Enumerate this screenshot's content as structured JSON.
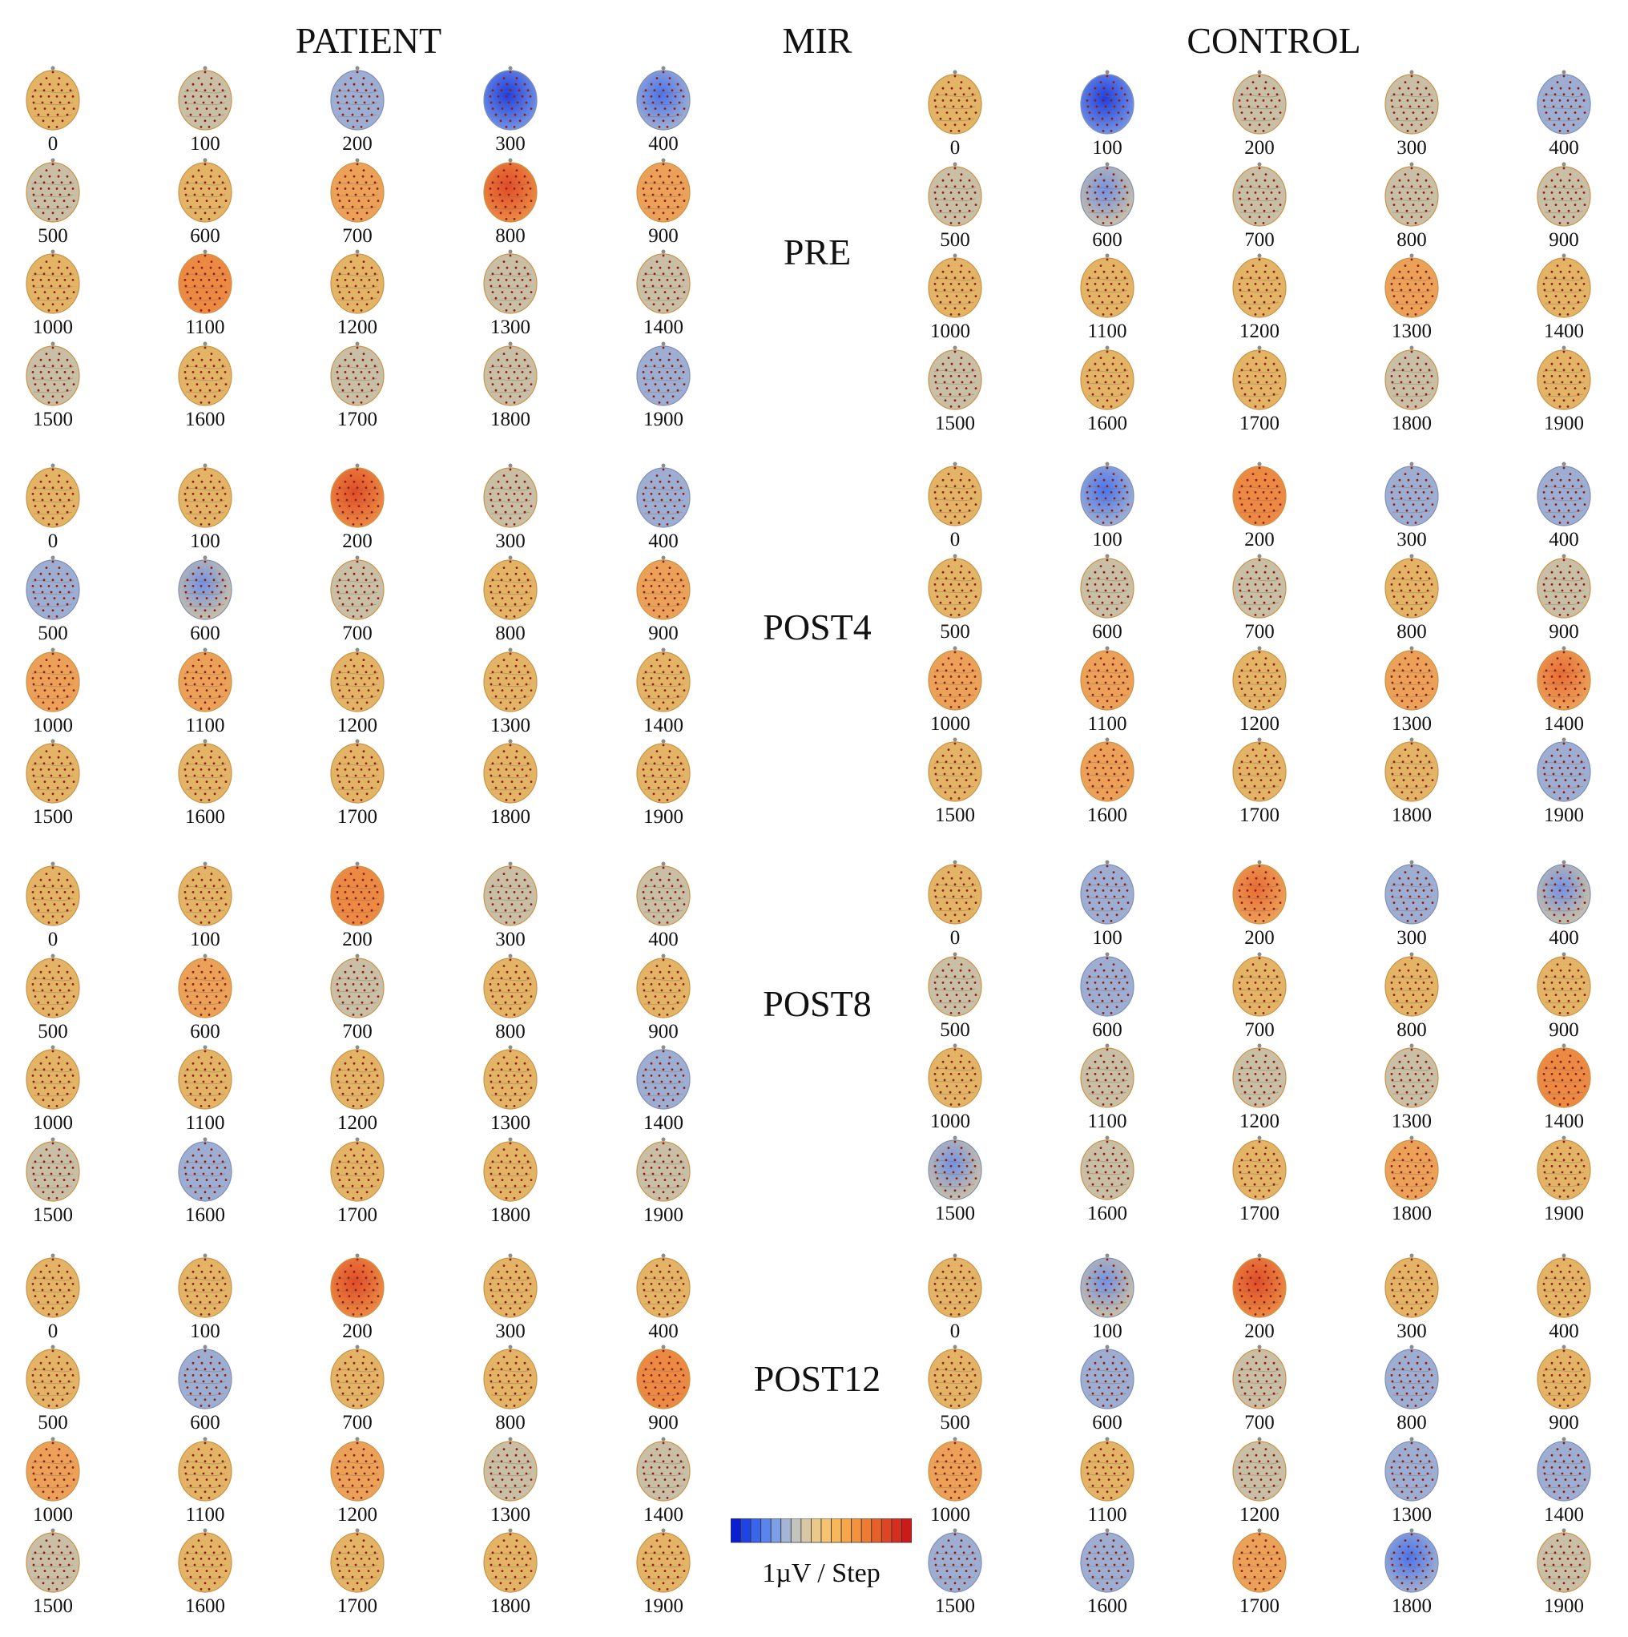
{
  "headers": {
    "patient": "PATIENT",
    "mir": "MIR",
    "control": "CONTROL"
  },
  "conditions": [
    "PRE",
    "POST4",
    "POST8",
    "POST12"
  ],
  "time_labels": [
    "0",
    "100",
    "200",
    "300",
    "400",
    "500",
    "600",
    "700",
    "800",
    "900",
    "1000",
    "1100",
    "1200",
    "1300",
    "1400",
    "1500",
    "1600",
    "1700",
    "1800",
    "1900"
  ],
  "legend": {
    "label": "1µV / Step",
    "colors": [
      "#0a1fd0",
      "#1f44e6",
      "#3a66ee",
      "#5a85ee",
      "#7c9fe8",
      "#a4b5d6",
      "#c4c4bf",
      "#d9c8a6",
      "#ecc98a",
      "#f6c470",
      "#f8b75a",
      "#f7a64a",
      "#f4923d",
      "#ee7a33",
      "#e6602a",
      "#de4524",
      "#d42e1e",
      "#cc1a18"
    ]
  },
  "maps": {
    "patient": {
      "PRE": [
        0,
        -1,
        -2,
        -5,
        -4,
        -1,
        0,
        1,
        4,
        1,
        0,
        2,
        0,
        -1,
        -1,
        -1,
        0,
        -1,
        -1,
        -2
      ],
      "POST4": [
        0,
        0,
        4,
        -1,
        -2,
        -2,
        -3,
        -1,
        0,
        1,
        1,
        1,
        0,
        0,
        0,
        0,
        0,
        0,
        0,
        0
      ],
      "POST8": [
        0,
        0,
        2,
        -1,
        -1,
        0,
        1,
        -1,
        0,
        0,
        0,
        0,
        0,
        0,
        -2,
        -1,
        -2,
        0,
        0,
        -1
      ],
      "POST12": [
        0,
        0,
        4,
        0,
        0,
        0,
        -2,
        0,
        0,
        2,
        1,
        0,
        1,
        -1,
        -1,
        -1,
        0,
        0,
        0,
        0
      ]
    },
    "control": {
      "PRE": [
        0,
        -5,
        -1,
        -1,
        -2,
        -1,
        -3,
        -1,
        -1,
        -1,
        0,
        0,
        0,
        1,
        0,
        -1,
        0,
        0,
        -1,
        0
      ],
      "POST4": [
        0,
        -4,
        2,
        -2,
        -2,
        0,
        -1,
        -1,
        0,
        -1,
        1,
        1,
        0,
        1,
        3,
        0,
        1,
        0,
        0,
        -2
      ],
      "POST8": [
        0,
        -2,
        3,
        -2,
        -3,
        -1,
        -2,
        0,
        0,
        0,
        0,
        -1,
        -1,
        -1,
        2,
        -3,
        -1,
        0,
        1,
        0
      ],
      "POST12": [
        0,
        -3,
        4,
        0,
        0,
        0,
        -2,
        -1,
        -2,
        0,
        1,
        0,
        -1,
        -2,
        -2,
        -2,
        -2,
        1,
        -4,
        -1
      ]
    }
  }
}
